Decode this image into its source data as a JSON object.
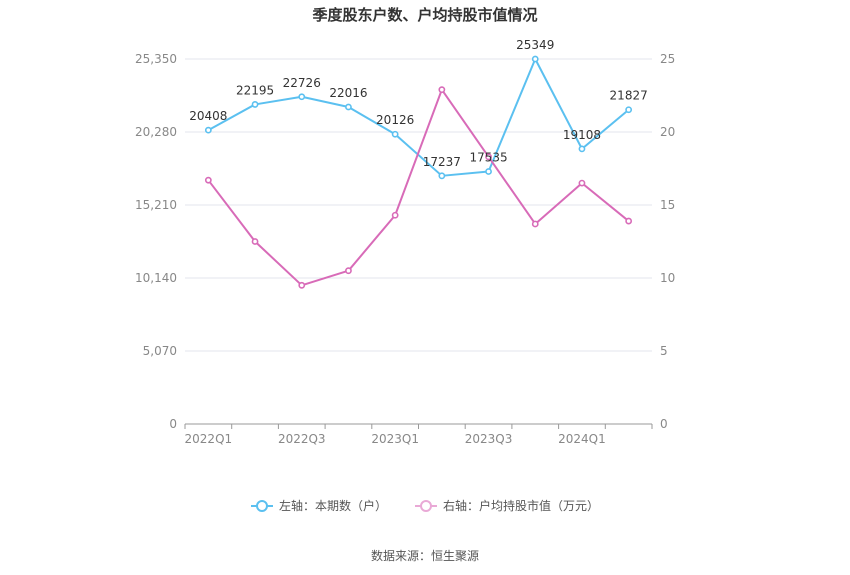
{
  "chart_data": {
    "type": "line",
    "title": "季度股东户数、户均持股市值情况",
    "categories": [
      "2022Q1",
      "2022Q2",
      "2022Q3",
      "2022Q4",
      "2023Q1",
      "2023Q2",
      "2023Q3",
      "2023Q4",
      "2024Q1",
      "2024Q2"
    ],
    "x_tick_labels": [
      "2022Q1",
      "2022Q3",
      "2023Q1",
      "2023Q3",
      "2024Q1"
    ],
    "left_axis": {
      "ylim": [
        0,
        25350
      ],
      "ticks": [
        "0",
        "5,070",
        "10,140",
        "15,210",
        "20,280",
        "25,350"
      ]
    },
    "right_axis": {
      "ylim": [
        0,
        25
      ],
      "ticks": [
        "0",
        "5",
        "10",
        "15",
        "20",
        "25"
      ]
    },
    "series": [
      {
        "name": "左轴：本期数（户）",
        "axis": "left",
        "color": "#5bc0f0",
        "values": [
          20408,
          22195,
          22726,
          22016,
          20126,
          17237,
          17535,
          25349,
          19108,
          21827
        ],
        "labels": [
          "20408",
          "22195",
          "22726",
          "22016",
          "20126",
          "17237",
          "17535",
          "25349",
          "19108",
          "21827"
        ]
      },
      {
        "name": "右轴：户均持股市值（万元）",
        "axis": "right",
        "color": "#d86bb8",
        "values": [
          16.7,
          12.5,
          9.5,
          10.5,
          14.3,
          22.9,
          18.3,
          13.7,
          16.5,
          13.9
        ]
      }
    ],
    "grid": true,
    "legend_position": "bottom"
  },
  "footer": {
    "source": "数据来源：恒生聚源"
  }
}
